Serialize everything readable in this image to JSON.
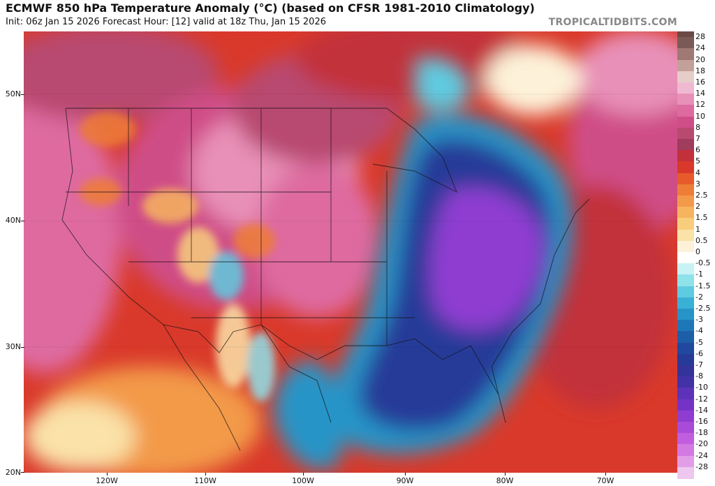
{
  "header": {
    "title": "ECMWF 850 hPa Temperature Anomaly (°C) (based on CFSR 1981-2010 Climatology)",
    "subtitle": "Init: 06z Jan 15 2026   Forecast Hour: [12]   valid at 18z Thu, Jan 15 2026",
    "watermark": "TROPICALTIDBITS.COM"
  },
  "axes": {
    "lat_labels": [
      "50N",
      "40N",
      "30N",
      "20N"
    ],
    "lon_labels": [
      "120W",
      "110W",
      "100W",
      "90W",
      "80W",
      "70W"
    ]
  },
  "colorbar": {
    "labels": [
      "28",
      "24",
      "20",
      "18",
      "16",
      "14",
      "12",
      "10",
      "8",
      "7",
      "6",
      "5",
      "4",
      "3",
      "2.5",
      "2",
      "1.5",
      "1",
      "0.5",
      "0",
      "-0.5",
      "-1",
      "-1.5",
      "-2",
      "-2.5",
      "-3",
      "-4",
      "-5",
      "-6",
      "-7",
      "-8",
      "-10",
      "-12",
      "-14",
      "-16",
      "-18",
      "-20",
      "-24",
      "-28"
    ],
    "colors": [
      "#7a5a56",
      "#a07874",
      "#c4a09b",
      "#e7cdc9",
      "#f0b9d2",
      "#e890b8",
      "#de6ba0",
      "#cf4e87",
      "#b84a6f",
      "#a13c5c",
      "#c2303a",
      "#d9392a",
      "#e85a2a",
      "#ee7d38",
      "#f39a4a",
      "#f6b45e",
      "#f8cd7c",
      "#fae2a8",
      "#fdf2d9",
      "#ffffff",
      "#c8f2f4",
      "#8fe2ea",
      "#5fcbe0",
      "#3ab0d6",
      "#2794c7",
      "#1e78b8",
      "#1d5ea9",
      "#21489e",
      "#263a98",
      "#34339a",
      "#4331a6",
      "#5c33b8",
      "#7533c6",
      "#8f3dd1",
      "#a84bd8",
      "#c05ede",
      "#d37ae2",
      "#e19ee7",
      "#edc7ef"
    ]
  },
  "legend": {
    "icon": "temperature-anomaly-colorbar"
  }
}
